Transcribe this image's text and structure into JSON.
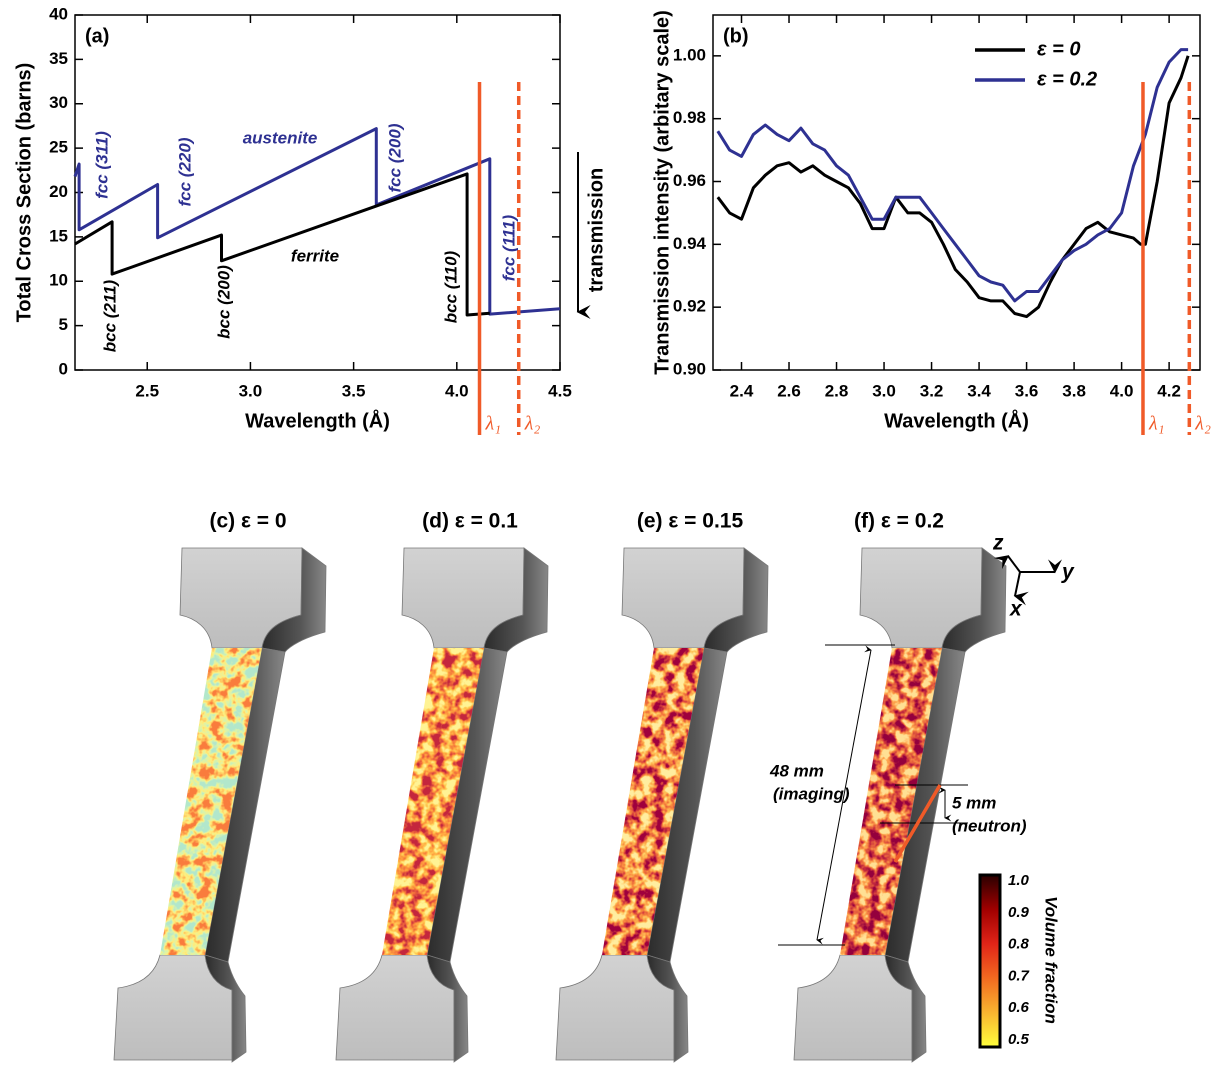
{
  "chart_data": [
    {
      "type": "line",
      "panel_label": "(a)",
      "xlabel": "Wavelength (Å)",
      "ylabel": "Total Cross Section (barns)",
      "xlim": [
        2.15,
        4.5
      ],
      "ylim": [
        0,
        40
      ],
      "xticks": [
        2.5,
        {
          "value": 3,
          "label": "3.0"
        },
        3.5,
        {
          "value": 4,
          "label": "4.0"
        },
        4.5
      ],
      "yticks": [
        0,
        5,
        10,
        15,
        20,
        25,
        30,
        35,
        40
      ],
      "series": [
        {
          "color": "#2e3192",
          "x": [
            2.15,
            2.17,
            2.17,
            2.55,
            2.55,
            3.61,
            3.61,
            4.16,
            4.16,
            4.5
          ],
          "values": [
            21.8,
            23.2,
            15.8,
            20.9,
            14.9,
            27.2,
            18.6,
            23.8,
            6.3,
            6.9
          ]
        },
        {
          "color": "#000000",
          "x": [
            2.15,
            2.33,
            2.33,
            2.86,
            2.86,
            4.05,
            4.05,
            4.16
          ],
          "values": [
            14.2,
            16.7,
            10.8,
            15.2,
            12.3,
            22.1,
            6.2,
            6.4
          ]
        }
      ],
      "markers": [
        {
          "x": 4.11,
          "label": "λ₁",
          "style": "solid",
          "color": "#f05a28"
        },
        {
          "x": 4.3,
          "label": "λ₂",
          "style": "dashed",
          "color": "#f05a28"
        }
      ],
      "annotations": [
        {
          "text": "fcc (311)",
          "color": "#2e3192"
        },
        {
          "text": "fcc (220)",
          "color": "#2e3192"
        },
        {
          "text": "austenite",
          "color": "#2e3192"
        },
        {
          "text": "fcc (200)",
          "color": "#2e3192"
        },
        {
          "text": "fcc (111)",
          "color": "#2e3192"
        },
        {
          "text": "bcc (211)",
          "color": "#000000"
        },
        {
          "text": "bcc (200)",
          "color": "#000000"
        },
        {
          "text": "ferrite",
          "color": "#000000"
        },
        {
          "text": "bcc (110)",
          "color": "#000000"
        }
      ],
      "arrow_label": "transmission"
    },
    {
      "type": "line",
      "panel_label": "(b)",
      "xlabel": "Wavelength (Å)",
      "ylabel": "Transmission intensity (arbitary scale)",
      "xlim": [
        2.28,
        4.33
      ],
      "ylim": [
        0.9,
        1.013
      ],
      "xticks": [
        2.4,
        2.6,
        2.8,
        {
          "value": 3,
          "label": "3.0"
        },
        3.2,
        3.4,
        3.6,
        3.8,
        {
          "value": 4,
          "label": "4.0"
        },
        4.2
      ],
      "yticks": [
        {
          "value": 0.9,
          "label": "0.90"
        },
        0.92,
        0.94,
        0.96,
        0.98,
        {
          "value": 1,
          "label": "1.00"
        }
      ],
      "legend": "upper right",
      "series": [
        {
          "name": "ε = 0",
          "color": "#000000",
          "x": [
            2.3,
            2.35,
            2.4,
            2.45,
            2.5,
            2.55,
            2.6,
            2.65,
            2.7,
            2.75,
            2.8,
            2.85,
            2.9,
            2.95,
            3.0,
            3.05,
            3.1,
            3.15,
            3.2,
            3.25,
            3.3,
            3.35,
            3.4,
            3.45,
            3.5,
            3.55,
            3.6,
            3.65,
            3.7,
            3.75,
            3.8,
            3.85,
            3.9,
            3.95,
            4.0,
            4.05,
            4.08,
            4.1,
            4.15,
            4.2,
            4.25,
            4.28
          ],
          "values": [
            0.955,
            0.95,
            0.948,
            0.958,
            0.962,
            0.965,
            0.966,
            0.963,
            0.965,
            0.962,
            0.96,
            0.958,
            0.953,
            0.945,
            0.945,
            0.955,
            0.95,
            0.95,
            0.947,
            0.94,
            0.932,
            0.928,
            0.923,
            0.922,
            0.922,
            0.918,
            0.917,
            0.92,
            0.928,
            0.935,
            0.94,
            0.945,
            0.947,
            0.944,
            0.943,
            0.942,
            0.94,
            0.94,
            0.96,
            0.985,
            0.993,
            1.0
          ]
        },
        {
          "name": "ε = 0.2",
          "color": "#2e3192",
          "x": [
            2.3,
            2.35,
            2.4,
            2.45,
            2.5,
            2.55,
            2.6,
            2.65,
            2.7,
            2.75,
            2.8,
            2.85,
            2.9,
            2.95,
            3.0,
            3.05,
            3.1,
            3.15,
            3.2,
            3.25,
            3.3,
            3.35,
            3.4,
            3.45,
            3.5,
            3.55,
            3.6,
            3.65,
            3.7,
            3.75,
            3.8,
            3.85,
            3.9,
            3.95,
            4.0,
            4.05,
            4.1,
            4.15,
            4.2,
            4.25,
            4.28
          ],
          "values": [
            0.976,
            0.97,
            0.968,
            0.975,
            0.978,
            0.975,
            0.973,
            0.977,
            0.972,
            0.97,
            0.965,
            0.962,
            0.955,
            0.948,
            0.948,
            0.955,
            0.955,
            0.955,
            0.95,
            0.945,
            0.94,
            0.935,
            0.93,
            0.928,
            0.927,
            0.922,
            0.925,
            0.925,
            0.93,
            0.935,
            0.938,
            0.94,
            0.943,
            0.945,
            0.95,
            0.965,
            0.975,
            0.99,
            0.998,
            1.002,
            1.002
          ]
        }
      ],
      "markers": [
        {
          "x": 4.09,
          "label": "λ₁",
          "style": "solid",
          "color": "#f05a28"
        },
        {
          "x": 4.285,
          "label": "λ₂",
          "style": "dashed",
          "color": "#f05a28"
        }
      ]
    }
  ],
  "specimens": {
    "panels": [
      "(c) ε = 0",
      "(d) ε = 0.1",
      "(e) ε = 0.15",
      "(f) ε = 0.2"
    ],
    "imaging": {
      "size": "48 mm",
      "label": "(imaging)"
    },
    "neutron": {
      "size": "5 mm",
      "label": "(neutron)"
    },
    "axes": [
      "z",
      "y",
      "x"
    ],
    "colorbar": {
      "title": "Volume fraction",
      "ticks": [
        "1.0",
        "0.9",
        "0.8",
        "0.7",
        "0.6",
        "0.5"
      ]
    }
  }
}
